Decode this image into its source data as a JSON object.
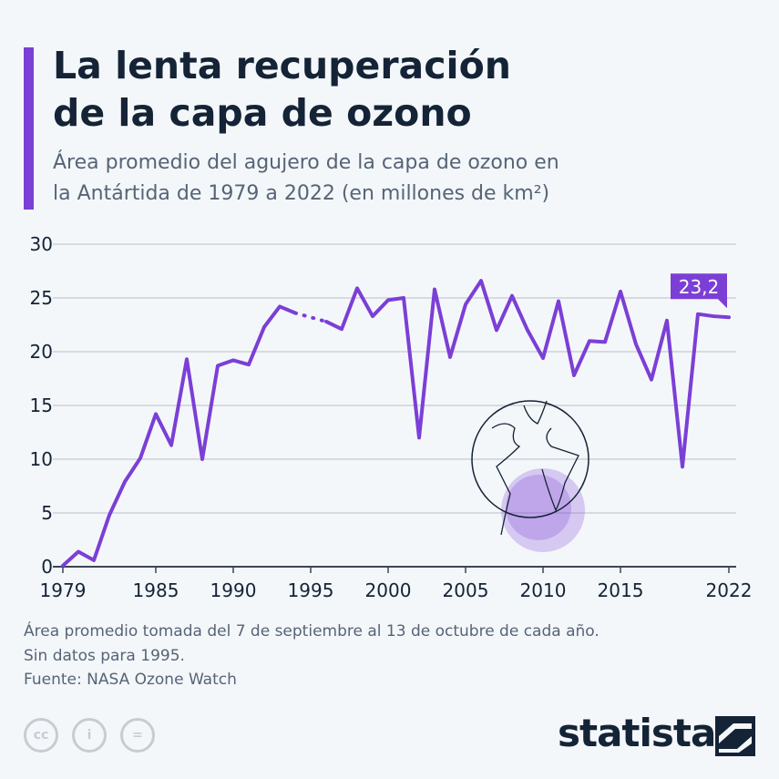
{
  "title_line1": "La lenta recuperación",
  "title_line2": "de la capa de ozono",
  "subtitle_line1": "Área promedio del agujero de la capa de ozono en",
  "subtitle_line2": "la Antártida de 1979 a 2022 (en millones de km²)",
  "note_line1": "Área promedio tomada del 7 de septiembre al 13 de octubre de cada año.",
  "note_line2": "Sin datos para 1995.",
  "source": "Fuente: NASA Ozone Watch",
  "license_icons": [
    "cc-icon",
    "by-icon",
    "nd-icon"
  ],
  "license_labels": [
    "cc",
    "i",
    "="
  ],
  "brand": "statista",
  "colors": {
    "accent": "#7b3fd6",
    "text": "#142336",
    "muted": "#566476"
  },
  "chart_data": {
    "type": "line",
    "title": "La lenta recuperación de la capa de ozono",
    "ylim": [
      0,
      30
    ],
    "yticks": [
      0,
      5,
      10,
      15,
      20,
      25,
      30
    ],
    "xlim": [
      1979,
      2022
    ],
    "xticks": [
      1979,
      1985,
      1990,
      1995,
      2000,
      2005,
      2010,
      2015,
      2022
    ],
    "grid": true,
    "missing": [
      1995
    ],
    "annotation": {
      "x": 2022,
      "label": "23,2"
    },
    "x": [
      1979,
      1980,
      1981,
      1982,
      1983,
      1984,
      1985,
      1986,
      1987,
      1988,
      1989,
      1990,
      1991,
      1992,
      1993,
      1994,
      1996,
      1997,
      1998,
      1999,
      2000,
      2001,
      2002,
      2003,
      2004,
      2005,
      2006,
      2007,
      2008,
      2009,
      2010,
      2011,
      2012,
      2013,
      2014,
      2015,
      2016,
      2017,
      2018,
      2019,
      2020,
      2021,
      2022
    ],
    "y": [
      0.1,
      1.4,
      0.6,
      4.8,
      7.9,
      10.1,
      14.2,
      11.3,
      19.3,
      10.0,
      18.7,
      19.2,
      18.8,
      22.3,
      24.2,
      23.6,
      22.8,
      22.1,
      25.9,
      23.3,
      24.8,
      25.0,
      12.0,
      25.8,
      19.5,
      24.4,
      26.6,
      22.0,
      25.2,
      22.0,
      19.4,
      24.7,
      17.8,
      21.0,
      20.9,
      25.6,
      20.7,
      17.4,
      22.9,
      9.3,
      23.5,
      23.3,
      23.2
    ]
  }
}
